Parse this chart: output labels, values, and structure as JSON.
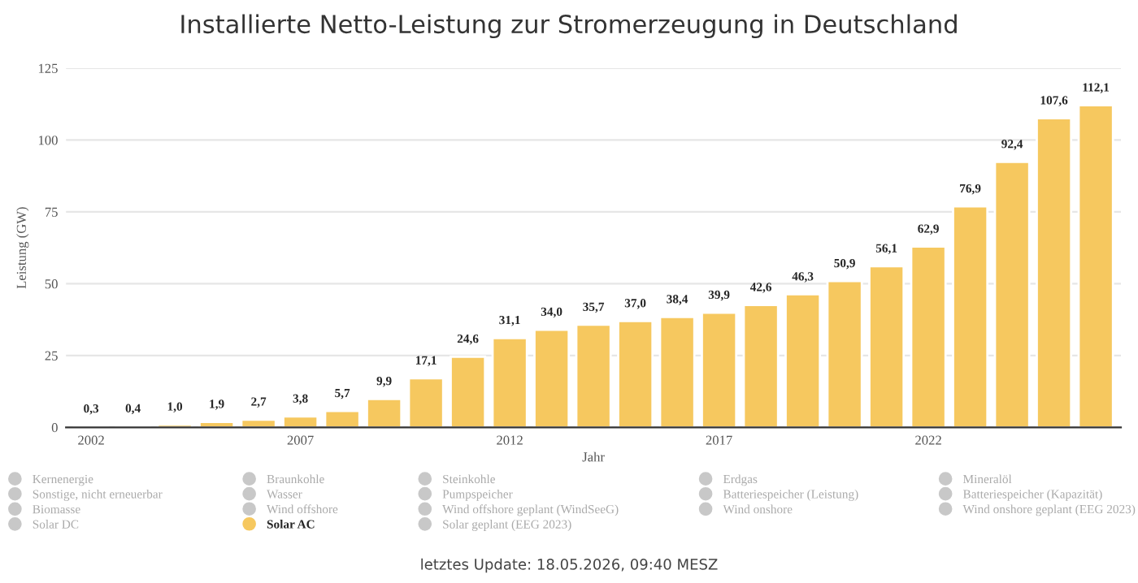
{
  "chart_data": {
    "type": "bar",
    "title": "Installierte Netto-Leistung zur Stromerzeugung in Deutschland",
    "xlabel": "Jahr",
    "ylabel": "Leistung (GW)",
    "categories": [
      "2002",
      null,
      null,
      null,
      null,
      "2007",
      null,
      null,
      null,
      null,
      "2012",
      null,
      null,
      null,
      null,
      "2017",
      null,
      null,
      null,
      null,
      "2022",
      null,
      null,
      null,
      null
    ],
    "series": [
      {
        "name": "Kernenergie",
        "color": "#c8c8c8",
        "values": [
          null,
          null,
          null,
          null,
          null,
          null,
          null,
          null,
          null,
          null,
          null,
          null,
          null,
          null,
          null,
          null,
          null,
          null,
          null,
          null,
          null,
          null,
          null,
          null,
          null
        ]
      },
      {
        "name": "Sonstige, nicht erneuerbar",
        "color": "#c8c8c8",
        "values": [
          null,
          null,
          null,
          null,
          null,
          null,
          null,
          null,
          null,
          null,
          null,
          null,
          null,
          null,
          null,
          null,
          null,
          null,
          null,
          null,
          null,
          null,
          null,
          null,
          null
        ]
      },
      {
        "name": "Biomasse",
        "color": "#c8c8c8",
        "values": [
          null,
          null,
          null,
          null,
          null,
          null,
          null,
          null,
          null,
          null,
          null,
          null,
          null,
          null,
          null,
          null,
          null,
          null,
          null,
          null,
          null,
          null,
          null,
          null,
          null
        ]
      },
      {
        "name": "Solar DC",
        "color": "#c8c8c8",
        "values": [
          null,
          null,
          null,
          null,
          null,
          null,
          null,
          null,
          null,
          null,
          null,
          null,
          null,
          null,
          null,
          null,
          null,
          null,
          null,
          null,
          null,
          null,
          null,
          null,
          null
        ]
      },
      {
        "name": "Braunkohle",
        "color": "#c8c8c8",
        "values": [
          null,
          null,
          null,
          null,
          null,
          null,
          null,
          null,
          null,
          null,
          null,
          null,
          null,
          null,
          null,
          null,
          null,
          null,
          null,
          null,
          null,
          null,
          null,
          null,
          null
        ]
      },
      {
        "name": "Wasser",
        "color": "#c8c8c8",
        "values": [
          null,
          null,
          null,
          null,
          null,
          null,
          null,
          null,
          null,
          null,
          null,
          null,
          null,
          null,
          null,
          null,
          null,
          null,
          null,
          null,
          null,
          null,
          null,
          null,
          null
        ]
      },
      {
        "name": "Wind offshore",
        "color": "#c8c8c8",
        "values": [
          null,
          null,
          null,
          null,
          null,
          null,
          null,
          null,
          null,
          null,
          null,
          null,
          null,
          null,
          null,
          null,
          null,
          null,
          null,
          null,
          null,
          null,
          null,
          null,
          null
        ]
      },
      {
        "name": "Solar AC",
        "color": "#f6c85f",
        "values": [
          0.3,
          0.4,
          1.0,
          1.9,
          2.7,
          3.8,
          5.7,
          9.9,
          17.1,
          24.6,
          31.1,
          34.0,
          35.7,
          37.0,
          38.4,
          39.9,
          42.6,
          46.3,
          50.9,
          56.1,
          62.9,
          76.9,
          92.4,
          107.6,
          112.1
        ],
        "value_labels": [
          "0,3",
          "0,4",
          "1,0",
          "1,9",
          "2,7",
          "3,8",
          "5,7",
          "9,9",
          "17,1",
          "24,6",
          "31,1",
          "34,0",
          "35,7",
          "37,0",
          "38,4",
          "39,9",
          "42,6",
          "46,3",
          "50,9",
          "56,1",
          "62,9",
          "76,9",
          "92,4",
          "107,6",
          "112,1"
        ]
      },
      {
        "name": "Steinkohle",
        "color": "#c8c8c8",
        "values": [
          null,
          null,
          null,
          null,
          null,
          null,
          null,
          null,
          null,
          null,
          null,
          null,
          null,
          null,
          null,
          null,
          null,
          null,
          null,
          null,
          null,
          null,
          null,
          null,
          null
        ]
      },
      {
        "name": "Pumpspeicher",
        "color": "#c8c8c8",
        "values": [
          null,
          null,
          null,
          null,
          null,
          null,
          null,
          null,
          null,
          null,
          null,
          null,
          null,
          null,
          null,
          null,
          null,
          null,
          null,
          null,
          null,
          null,
          null,
          null,
          null
        ]
      },
      {
        "name": "Wind offshore geplant (WindSeeG)",
        "color": "#c8c8c8",
        "values": [
          null,
          null,
          null,
          null,
          null,
          null,
          null,
          null,
          null,
          null,
          null,
          null,
          null,
          null,
          null,
          null,
          null,
          null,
          null,
          null,
          null,
          null,
          null,
          null,
          null
        ]
      },
      {
        "name": "Solar geplant (EEG 2023)",
        "color": "#c8c8c8",
        "values": [
          null,
          null,
          null,
          null,
          null,
          null,
          null,
          null,
          null,
          null,
          null,
          null,
          null,
          null,
          null,
          null,
          null,
          null,
          null,
          null,
          null,
          null,
          null,
          null,
          null
        ]
      },
      {
        "name": "Erdgas",
        "color": "#c8c8c8",
        "values": [
          null,
          null,
          null,
          null,
          null,
          null,
          null,
          null,
          null,
          null,
          null,
          null,
          null,
          null,
          null,
          null,
          null,
          null,
          null,
          null,
          null,
          null,
          null,
          null,
          null
        ]
      },
      {
        "name": "Batteriespeicher (Leistung)",
        "color": "#c8c8c8",
        "values": [
          null,
          null,
          null,
          null,
          null,
          null,
          null,
          null,
          null,
          null,
          null,
          null,
          null,
          null,
          null,
          null,
          null,
          null,
          null,
          null,
          null,
          null,
          null,
          null,
          null
        ]
      },
      {
        "name": "Wind onshore",
        "color": "#c8c8c8",
        "values": [
          null,
          null,
          null,
          null,
          null,
          null,
          null,
          null,
          null,
          null,
          null,
          null,
          null,
          null,
          null,
          null,
          null,
          null,
          null,
          null,
          null,
          null,
          null,
          null,
          null
        ]
      },
      {
        "name": "Mineralöl",
        "color": "#c8c8c8",
        "values": [
          null,
          null,
          null,
          null,
          null,
          null,
          null,
          null,
          null,
          null,
          null,
          null,
          null,
          null,
          null,
          null,
          null,
          null,
          null,
          null,
          null,
          null,
          null,
          null,
          null
        ]
      },
      {
        "name": "Batteriespeicher (Kapazität)",
        "color": "#c8c8c8",
        "values": [
          null,
          null,
          null,
          null,
          null,
          null,
          null,
          null,
          null,
          null,
          null,
          null,
          null,
          null,
          null,
          null,
          null,
          null,
          null,
          null,
          null,
          null,
          null,
          null,
          null
        ]
      },
      {
        "name": "Wind onshore geplant (EEG 2023)",
        "color": "#c8c8c8",
        "values": [
          null,
          null,
          null,
          null,
          null,
          null,
          null,
          null,
          null,
          null,
          null,
          null,
          null,
          null,
          null,
          null,
          null,
          null,
          null,
          null,
          null,
          null,
          null,
          null,
          null
        ]
      }
    ],
    "ylim": [
      0,
      125
    ],
    "yticks": [
      0,
      25,
      50,
      75,
      100,
      125
    ],
    "grid": "y",
    "legend": "bottom",
    "annotations": [
      "letztes Update: 18.05.2026, 09:40 MESZ"
    ]
  }
}
